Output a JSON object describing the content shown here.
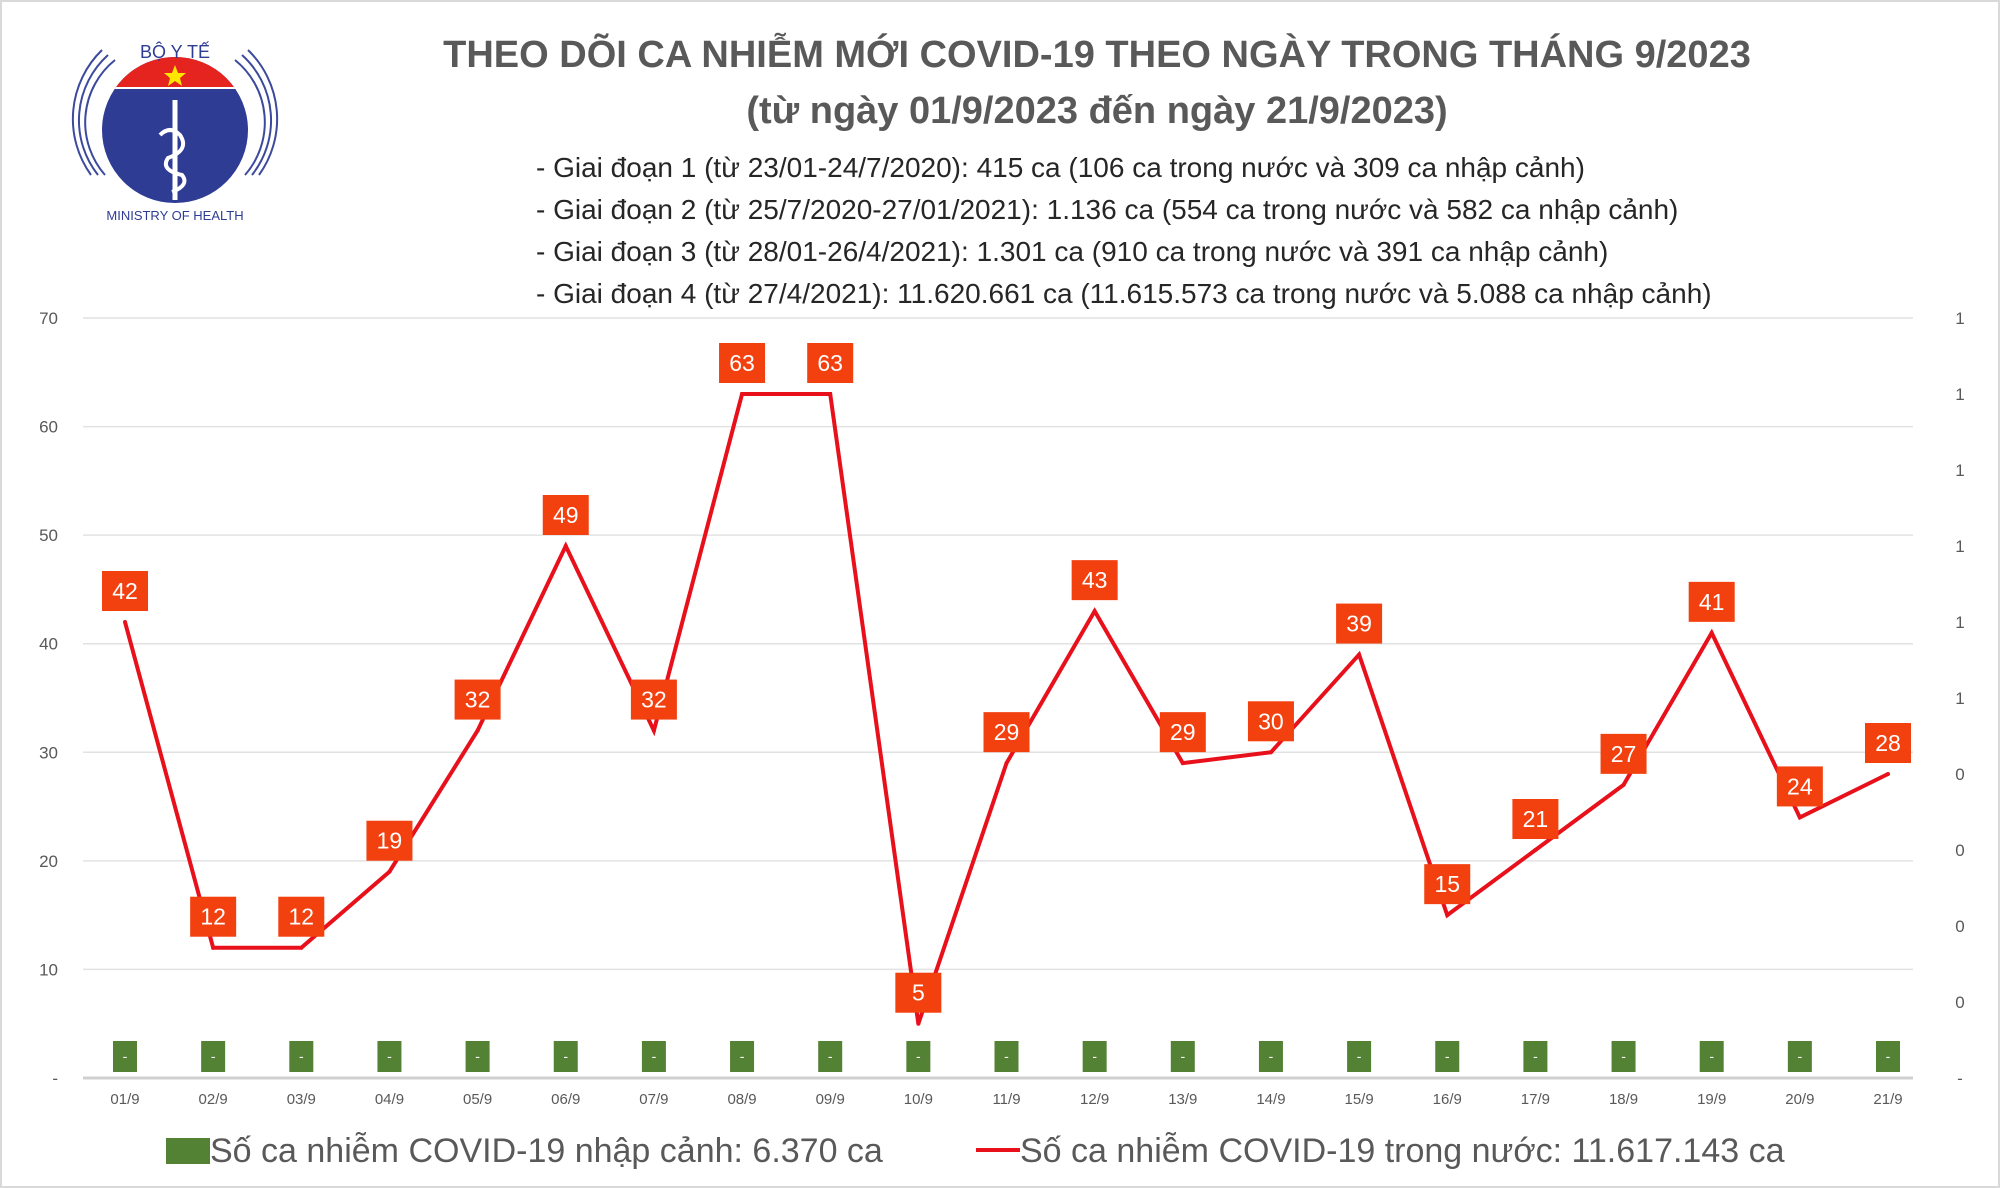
{
  "logo": {
    "top_text": "BỘ Y TẾ",
    "bottom_text": "MINISTRY OF HEALTH"
  },
  "title": {
    "line1": "THEO DÕI CA NHIỄM MỚI COVID-19 THEO NGÀY TRONG THÁNG 9/2023",
    "line2": "(từ ngày 01/9/2023 đến ngày 21/9/2023)"
  },
  "notes": [
    "- Giai đoạn 1 (từ 23/01-24/7/2020): 415 ca (106 ca trong nước và 309 ca nhập cảnh)",
    "- Giai đoạn 2 (từ 25/7/2020-27/01/2021): 1.136 ca (554 ca trong nước và 582 ca nhập cảnh)",
    "- Giai đoạn 3 (từ 28/01-26/4/2021): 1.301 ca (910 ca trong nước và 391 ca nhập cảnh)",
    "- Giai đoạn 4 (từ 27/4/2021): 11.620.661 ca (11.615.573 ca trong nước và 5.088 ca nhập cảnh)"
  ],
  "colors": {
    "line": "#e8111b",
    "label_bg": "#f2400f",
    "bar": "#548235",
    "title": "#595959"
  },
  "chart_data": {
    "type": "bar+line",
    "categories": [
      "01/9",
      "02/9",
      "03/9",
      "04/9",
      "05/9",
      "06/9",
      "07/9",
      "08/9",
      "09/9",
      "10/9",
      "11/9",
      "12/9",
      "13/9",
      "14/9",
      "15/9",
      "16/9",
      "17/9",
      "18/9",
      "19/9",
      "20/9",
      "21/9"
    ],
    "series": [
      {
        "name": "Số ca nhiễm COVID-19 nhập cảnh: 6.370 ca",
        "type": "bar",
        "axis": "right",
        "values": [
          0,
          0,
          0,
          0,
          0,
          0,
          0,
          0,
          0,
          0,
          0,
          0,
          0,
          0,
          0,
          0,
          0,
          0,
          0,
          0,
          0
        ],
        "data_labels": [
          "-",
          "-",
          "-",
          "-",
          "-",
          "-",
          "-",
          "-",
          "-",
          "-",
          "-",
          "-",
          "-",
          "-",
          "-",
          "-",
          "-",
          "-",
          "-",
          "-",
          "-"
        ]
      },
      {
        "name": "Số ca nhiễm COVID-19 trong nước: 11.617.143 ca",
        "type": "line",
        "axis": "left",
        "values": [
          42,
          12,
          12,
          19,
          32,
          49,
          32,
          63,
          63,
          5,
          29,
          43,
          29,
          30,
          39,
          15,
          21,
          27,
          41,
          24,
          28
        ]
      }
    ],
    "ylim": [
      0,
      70
    ],
    "left_ticks": [
      "-",
      "10",
      "20",
      "30",
      "40",
      "50",
      "60",
      "70"
    ],
    "right_ticks": [
      "-",
      "0",
      "0",
      "0",
      "0",
      "1",
      "1",
      "1",
      "1",
      "1",
      "1"
    ],
    "grid": true,
    "legend": "bottom"
  }
}
